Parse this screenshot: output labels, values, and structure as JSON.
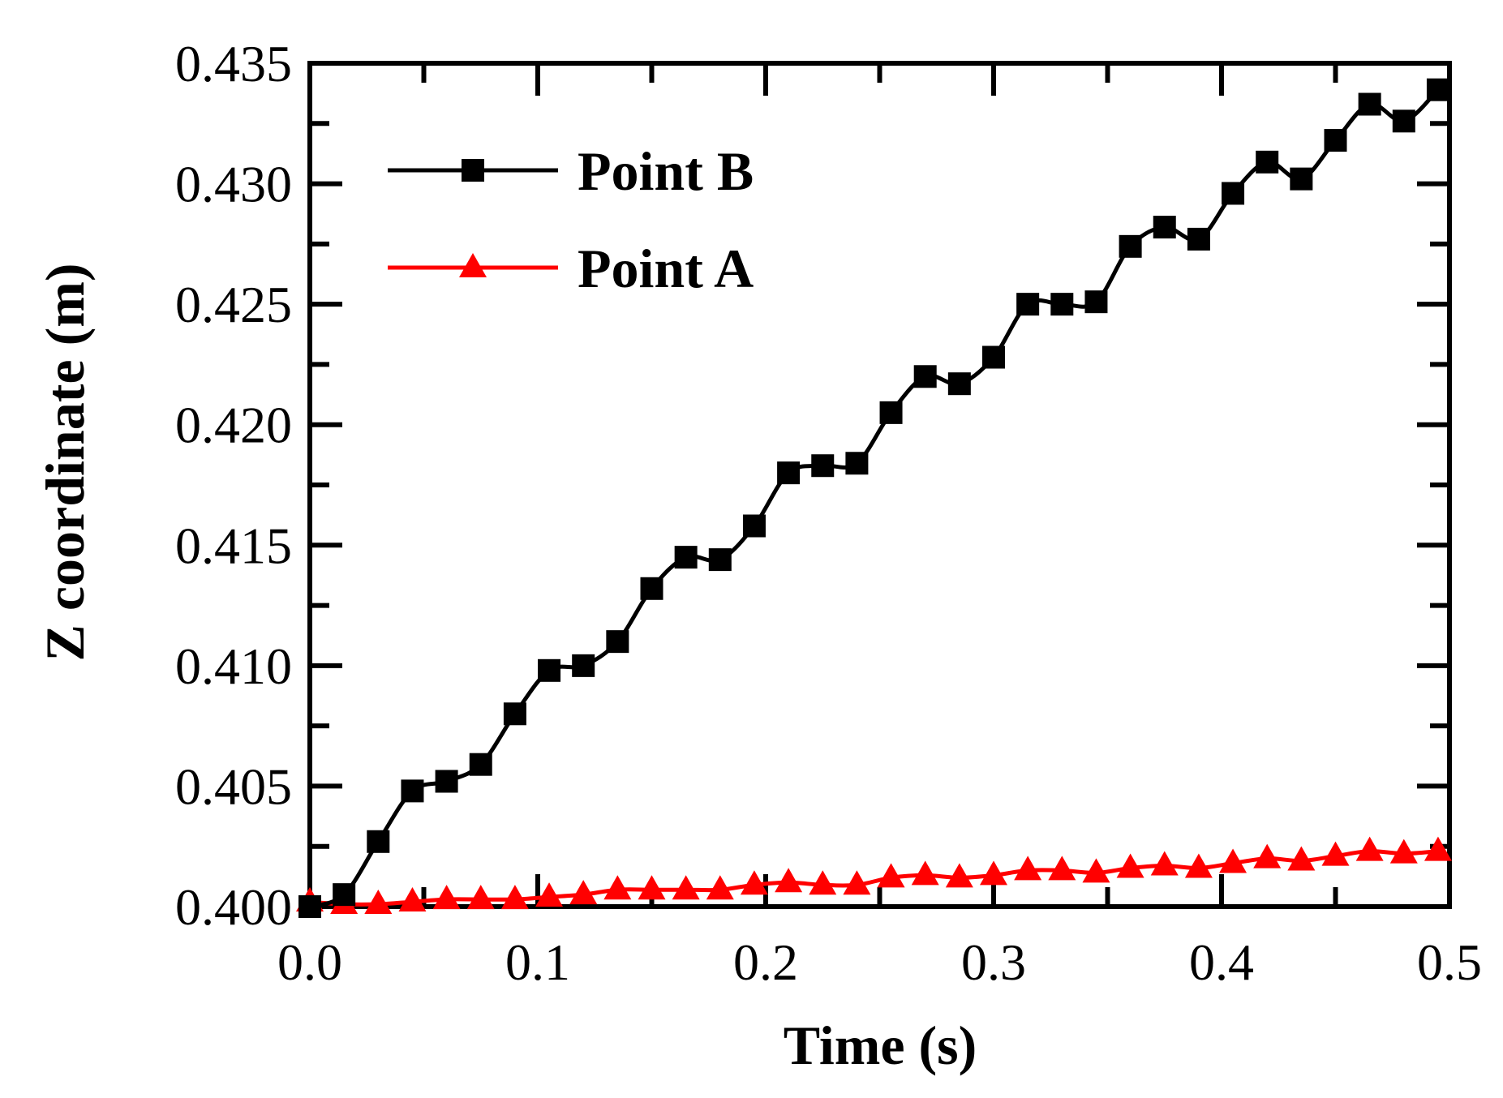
{
  "chart_data": {
    "type": "line",
    "title": "",
    "xlabel": "Time (s)",
    "ylabel": "Z coordinate (m)",
    "xlim": [
      0.0,
      0.5
    ],
    "ylim": [
      0.4,
      0.435
    ],
    "xticks": [
      "0.0",
      "0.1",
      "0.2",
      "0.3",
      "0.4",
      "0.5"
    ],
    "yticks": [
      "0.400",
      "0.405",
      "0.410",
      "0.415",
      "0.420",
      "0.425",
      "0.430",
      "0.435"
    ],
    "grid": false,
    "legend_position": "top-left",
    "x": [
      0.0,
      0.015,
      0.03,
      0.045,
      0.06,
      0.075,
      0.09,
      0.105,
      0.12,
      0.135,
      0.15,
      0.165,
      0.18,
      0.195,
      0.21,
      0.225,
      0.24,
      0.255,
      0.27,
      0.285,
      0.3,
      0.315,
      0.33,
      0.345,
      0.36,
      0.375,
      0.39,
      0.405,
      0.42,
      0.435,
      0.45,
      0.465,
      0.48,
      0.495
    ],
    "series": [
      {
        "name": "Point B",
        "color": "#000000",
        "marker": "square",
        "values": [
          0.4,
          0.4005,
          0.4027,
          0.4048,
          0.4052,
          0.4059,
          0.408,
          0.4098,
          0.41,
          0.411,
          0.4132,
          0.4145,
          0.4144,
          0.4158,
          0.418,
          0.4183,
          0.4184,
          0.4205,
          0.422,
          0.4217,
          0.4228,
          0.425,
          0.425,
          0.4251,
          0.4274,
          0.4282,
          0.4277,
          0.4296,
          0.4309,
          0.4302,
          0.4318,
          0.4333,
          0.4326,
          0.4339
        ]
      },
      {
        "name": "Point A",
        "color": "#ff0000",
        "marker": "triangle",
        "values": [
          0.4002,
          0.4001,
          0.4001,
          0.4002,
          0.4003,
          0.4003,
          0.4003,
          0.4004,
          0.4005,
          0.4007,
          0.4007,
          0.4007,
          0.4007,
          0.4009,
          0.401,
          0.4009,
          0.4009,
          0.4012,
          0.4013,
          0.4012,
          0.4013,
          0.4015,
          0.4015,
          0.4014,
          0.4016,
          0.4017,
          0.4016,
          0.4018,
          0.402,
          0.4019,
          0.4021,
          0.4023,
          0.4022,
          0.4023
        ]
      }
    ]
  }
}
